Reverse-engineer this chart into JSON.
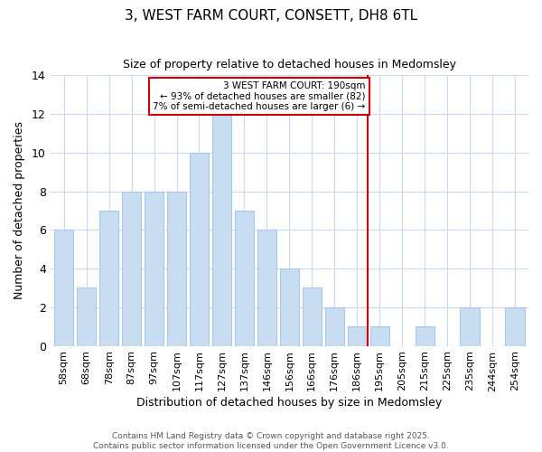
{
  "title": "3, WEST FARM COURT, CONSETT, DH8 6TL",
  "subtitle": "Size of property relative to detached houses in Medomsley",
  "xlabel": "Distribution of detached houses by size in Medomsley",
  "ylabel": "Number of detached properties",
  "bar_color": "#c8ddf2",
  "bar_edge_color": "#a8c8e8",
  "background_color": "#ffffff",
  "grid_color": "#ccd8ee",
  "annotation_line_color": "#cc0000",
  "annotation_box_edge_color": "#cc0000",
  "annotation_text_line1": "3 WEST FARM COURT: 190sqm",
  "annotation_text_line2": "← 93% of detached houses are smaller (82)",
  "annotation_text_line3": "7% of semi-detached houses are larger (6) →",
  "categories": [
    "58sqm",
    "68sqm",
    "78sqm",
    "87sqm",
    "97sqm",
    "107sqm",
    "117sqm",
    "127sqm",
    "137sqm",
    "146sqm",
    "156sqm",
    "166sqm",
    "176sqm",
    "186sqm",
    "195sqm",
    "205sqm",
    "215sqm",
    "225sqm",
    "235sqm",
    "244sqm",
    "254sqm"
  ],
  "values": [
    6,
    3,
    7,
    8,
    8,
    8,
    10,
    12,
    7,
    6,
    4,
    3,
    2,
    1,
    1,
    0,
    1,
    0,
    2,
    0,
    2
  ],
  "ylim": [
    0,
    14
  ],
  "yticks": [
    0,
    2,
    4,
    6,
    8,
    10,
    12,
    14
  ],
  "footer_line1": "Contains HM Land Registry data © Crown copyright and database right 2025.",
  "footer_line2": "Contains public sector information licensed under the Open Government Licence v3.0.",
  "red_line_index": 13,
  "figsize": [
    6.0,
    5.0
  ],
  "dpi": 100
}
